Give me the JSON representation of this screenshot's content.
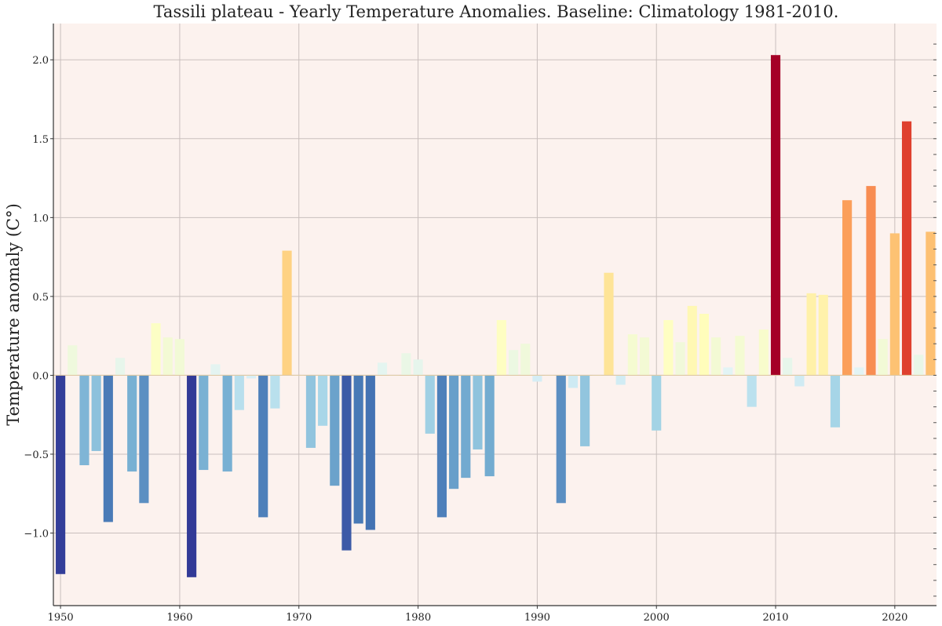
{
  "chart_data": {
    "type": "bar",
    "title": "Tassili plateau - Yearly Temperature Anomalies. Baseline: Climatology 1981-2010.",
    "xlabel": "",
    "ylabel": "Temperature anomaly (C°)",
    "xlim": [
      1949.4,
      2023.5
    ],
    "ylim": [
      -1.46,
      2.23
    ],
    "grid": true,
    "xticks": [
      1950,
      1960,
      1970,
      1980,
      1990,
      2000,
      2010,
      2020
    ],
    "xtick_labels": [
      "1950",
      "1960",
      "1970",
      "1980",
      "1990",
      "2000",
      "2010",
      "2020"
    ],
    "yticks": [
      -1.0,
      -0.5,
      0.0,
      0.5,
      1.0,
      1.5,
      2.0
    ],
    "ytick_labels": [
      "−1.0",
      "−0.5",
      "0.0",
      "0.5",
      "1.0",
      "1.5",
      "2.0"
    ],
    "colormap": "RdYlBu_r",
    "background": "#fcf2ee",
    "x": [
      1950,
      1951,
      1952,
      1953,
      1954,
      1955,
      1956,
      1957,
      1958,
      1959,
      1960,
      1961,
      1962,
      1963,
      1964,
      1965,
      1966,
      1967,
      1968,
      1969,
      1970,
      1971,
      1972,
      1973,
      1974,
      1975,
      1976,
      1977,
      1978,
      1979,
      1980,
      1981,
      1982,
      1983,
      1984,
      1985,
      1986,
      1987,
      1988,
      1989,
      1990,
      1991,
      1992,
      1993,
      1994,
      1995,
      1996,
      1997,
      1998,
      1999,
      2000,
      2001,
      2002,
      2003,
      2004,
      2005,
      2006,
      2007,
      2008,
      2009,
      2010,
      2011,
      2012,
      2013,
      2014,
      2015,
      2016,
      2017,
      2018,
      2019,
      2020,
      2021,
      2022,
      2023
    ],
    "values": [
      -1.26,
      0.19,
      -0.57,
      -0.48,
      -0.93,
      0.11,
      -0.61,
      -0.81,
      0.33,
      0.24,
      0.23,
      -1.28,
      -0.6,
      0.07,
      -0.61,
      -0.22,
      -0.02,
      -0.9,
      -0.21,
      0.79,
      0.0,
      -0.46,
      -0.32,
      -0.7,
      -1.11,
      -0.94,
      -0.98,
      0.08,
      0.0,
      0.14,
      0.1,
      -0.37,
      -0.9,
      -0.72,
      -0.65,
      -0.47,
      -0.64,
      0.35,
      0.16,
      0.2,
      -0.04,
      0.0,
      -0.81,
      -0.08,
      -0.45,
      0.0,
      0.65,
      -0.06,
      0.26,
      0.24,
      -0.35,
      0.35,
      0.21,
      0.44,
      0.39,
      0.24,
      0.05,
      0.25,
      -0.2,
      0.29,
      2.03,
      0.11,
      -0.07,
      0.52,
      0.51,
      -0.33,
      1.11,
      0.05,
      1.2,
      0.23,
      0.9,
      1.61,
      0.13,
      0.91
    ]
  }
}
